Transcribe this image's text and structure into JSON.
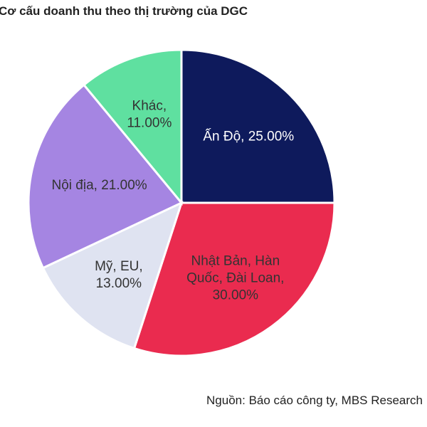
{
  "chart_data": {
    "type": "pie",
    "title": "Cơ cấu doanh thu theo thị trường của DGC",
    "source": "Nguồn: Báo cáo công ty, MBS Research",
    "slices": [
      {
        "label": "Ấn Độ",
        "value": 25.0,
        "value_text": "25.00%",
        "color": "#0e1a5c",
        "text_color": "#ffffff"
      },
      {
        "label": "Nhật Bản, Hàn Quốc, Đài Loan",
        "value": 30.0,
        "value_text": "30.00%",
        "color": "#ea2b4f",
        "text_color": "#333333"
      },
      {
        "label": "Mỹ, EU",
        "value": 13.0,
        "value_text": "13.00%",
        "color": "#dfe3f1",
        "text_color": "#333333"
      },
      {
        "label": "Nội địa",
        "value": 21.0,
        "value_text": "21.00%",
        "color": "#a585e2",
        "text_color": "#333333"
      },
      {
        "label": "Khác",
        "value": 11.0,
        "value_text": "11.00%",
        "color": "#5fe0a0",
        "text_color": "#333333"
      }
    ],
    "label_lines": [
      [
        "Ấn Độ, 25.00%"
      ],
      [
        "Nhật Bản, Hàn",
        "Quốc, Đài Loan,",
        "30.00%"
      ],
      [
        "Mỹ, EU,",
        "13.00%"
      ],
      [
        "Nội địa, 21.00%"
      ],
      [
        "Khác,",
        "11.00%"
      ]
    ],
    "start_angle": "12 o'clock",
    "direction": "clockwise",
    "legend": "none"
  }
}
